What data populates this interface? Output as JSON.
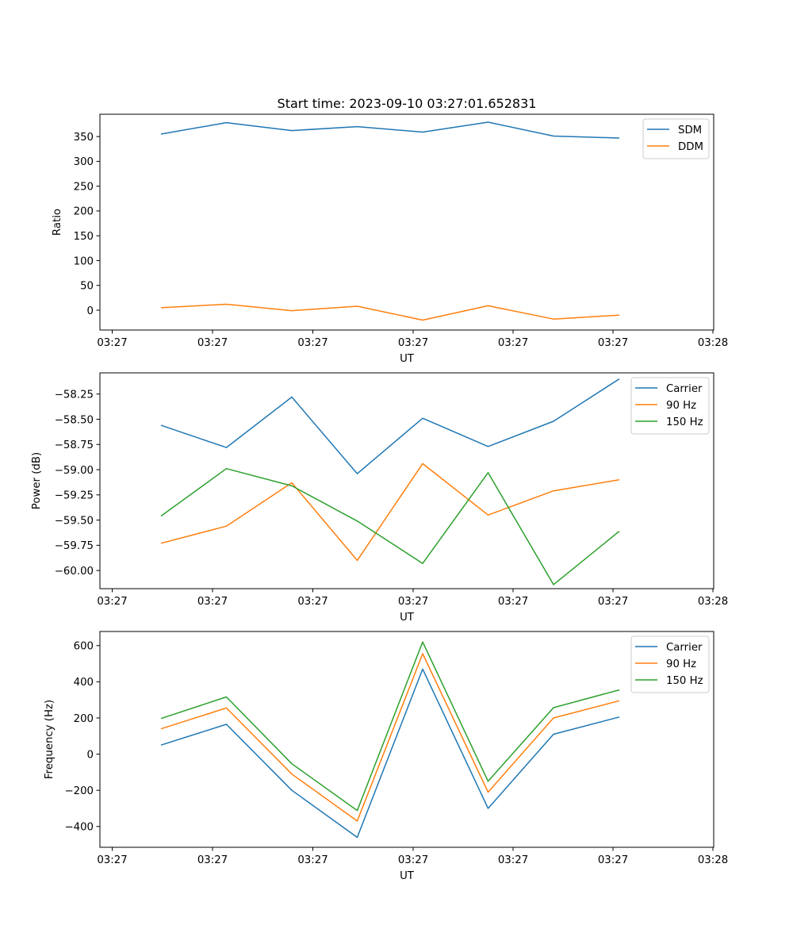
{
  "chart_data": [
    {
      "type": "line",
      "title": "Start time: 2023-09-10 03:27:01.652831",
      "xlabel": "UT",
      "ylabel": "Ratio",
      "x_tick_labels": [
        "03:27",
        "03:27",
        "03:27",
        "03:27",
        "03:27",
        "03:27",
        "03:28"
      ],
      "ylim": [
        -40,
        395
      ],
      "y_ticks": [
        0,
        50,
        100,
        150,
        200,
        250,
        300,
        350
      ],
      "y_tick_labels": [
        "0",
        "50",
        "100",
        "150",
        "200",
        "250",
        "300",
        "350"
      ],
      "legend_position": "top-right",
      "series": [
        {
          "name": "SDM",
          "color": "#1f77b4",
          "values": [
            355,
            378,
            362,
            370,
            359,
            379,
            351,
            347
          ]
        },
        {
          "name": "DDM",
          "color": "#ff7f0e",
          "values": [
            5,
            12,
            -1,
            8,
            -20,
            9,
            -18,
            -10
          ]
        }
      ]
    },
    {
      "type": "line",
      "title": "",
      "xlabel": "UT",
      "ylabel": "Power (dB)",
      "x_tick_labels": [
        "03:27",
        "03:27",
        "03:27",
        "03:27",
        "03:27",
        "03:27",
        "03:28"
      ],
      "ylim": [
        -60.18,
        -58.04
      ],
      "y_ticks": [
        -60.0,
        -59.75,
        -59.5,
        -59.25,
        -59.0,
        -58.75,
        -58.5,
        -58.25
      ],
      "y_tick_labels": [
        "−60.00",
        "−59.75",
        "−59.50",
        "−59.25",
        "−59.00",
        "−58.75",
        "−58.50",
        "−58.25"
      ],
      "legend_position": "top-right",
      "series": [
        {
          "name": "Carrier",
          "color": "#1f77b4",
          "values": [
            -58.56,
            -58.78,
            -58.28,
            -59.04,
            -58.49,
            -58.77,
            -58.52,
            -58.1
          ]
        },
        {
          "name": "90 Hz",
          "color": "#ff7f0e",
          "values": [
            -59.73,
            -59.56,
            -59.13,
            -59.9,
            -58.94,
            -59.45,
            -59.21,
            -59.1
          ]
        },
        {
          "name": "150 Hz",
          "color": "#2ca02c",
          "values": [
            -59.46,
            -58.99,
            -59.16,
            -59.51,
            -59.93,
            -59.03,
            -60.14,
            -59.61
          ]
        }
      ]
    },
    {
      "type": "line",
      "title": "",
      "xlabel": "UT",
      "ylabel": "Frequency (Hz)",
      "x_tick_labels": [
        "03:27",
        "03:27",
        "03:27",
        "03:27",
        "03:27",
        "03:27",
        "03:28"
      ],
      "ylim": [
        -515,
        678
      ],
      "y_ticks": [
        -400,
        -200,
        0,
        200,
        400,
        600
      ],
      "y_tick_labels": [
        "−400",
        "−200",
        "0",
        "200",
        "400",
        "600"
      ],
      "legend_position": "top-right",
      "series": [
        {
          "name": "Carrier",
          "color": "#1f77b4",
          "values": [
            50,
            165,
            -200,
            -460,
            470,
            -300,
            110,
            205
          ]
        },
        {
          "name": "90 Hz",
          "color": "#ff7f0e",
          "values": [
            140,
            255,
            -110,
            -370,
            555,
            -210,
            200,
            295
          ]
        },
        {
          "name": "150 Hz",
          "color": "#2ca02c",
          "values": [
            197,
            316,
            -53,
            -312,
            620,
            -150,
            257,
            355
          ]
        }
      ]
    }
  ]
}
